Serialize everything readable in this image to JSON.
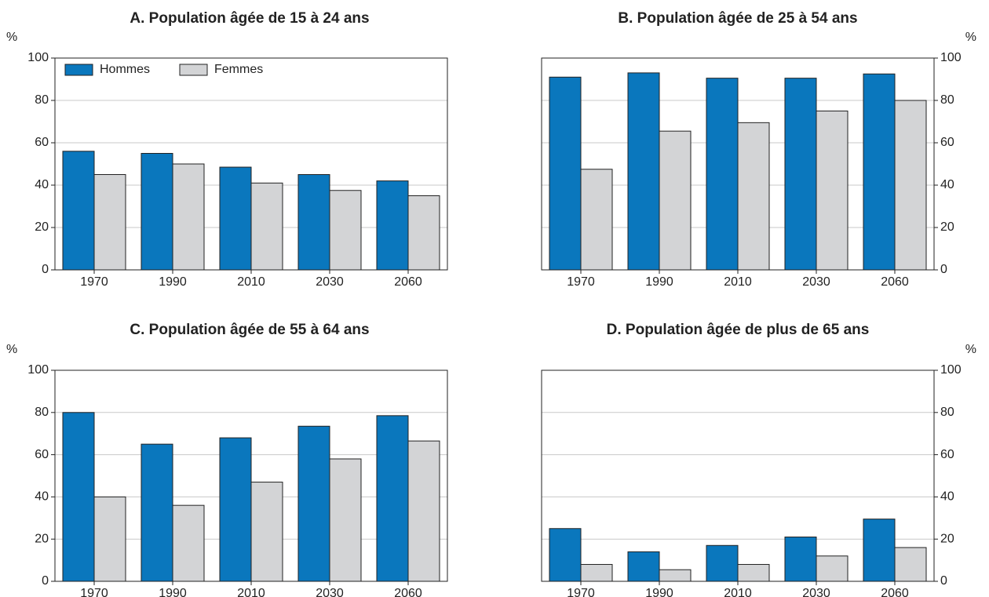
{
  "chart_data": [
    {
      "type": "bar",
      "title": "A. Population âgée de 15 à 24 ans",
      "ylabel": "%",
      "axis_side": "left",
      "ylim": [
        0,
        100
      ],
      "yticks": [
        0,
        20,
        40,
        60,
        80,
        100
      ],
      "categories": [
        "1970",
        "1990",
        "2010",
        "2030",
        "2060"
      ],
      "series": [
        {
          "name": "Hommes",
          "values": [
            56,
            55,
            48.5,
            45,
            42
          ]
        },
        {
          "name": "Femmes",
          "values": [
            45,
            50,
            41,
            37.5,
            35
          ]
        }
      ],
      "legend": "top-left",
      "grid": true
    },
    {
      "type": "bar",
      "title": "B. Population âgée de 25 à 54 ans",
      "ylabel": "%",
      "axis_side": "right",
      "ylim": [
        0,
        100
      ],
      "yticks": [
        0,
        20,
        40,
        60,
        80,
        100
      ],
      "categories": [
        "1970",
        "1990",
        "2010",
        "2030",
        "2060"
      ],
      "series": [
        {
          "name": "Hommes",
          "values": [
            91,
            93,
            90.5,
            90.5,
            92.5
          ]
        },
        {
          "name": "Femmes",
          "values": [
            47.5,
            65.5,
            69.5,
            75,
            80
          ]
        }
      ],
      "grid": true
    },
    {
      "type": "bar",
      "title": "C. Population âgée de 55 à 64 ans",
      "ylabel": "%",
      "axis_side": "left",
      "ylim": [
        0,
        100
      ],
      "yticks": [
        0,
        20,
        40,
        60,
        80,
        100
      ],
      "categories": [
        "1970",
        "1990",
        "2010",
        "2030",
        "2060"
      ],
      "series": [
        {
          "name": "Hommes",
          "values": [
            80,
            65,
            68,
            73.5,
            78.5
          ]
        },
        {
          "name": "Femmes",
          "values": [
            40,
            36,
            47,
            58,
            66.5
          ]
        }
      ],
      "grid": true
    },
    {
      "type": "bar",
      "title": "D. Population âgée de plus de 65 ans",
      "ylabel": "%",
      "axis_side": "right",
      "ylim": [
        0,
        100
      ],
      "yticks": [
        0,
        20,
        40,
        60,
        80,
        100
      ],
      "categories": [
        "1970",
        "1990",
        "2010",
        "2030",
        "2060"
      ],
      "series": [
        {
          "name": "Hommes",
          "values": [
            25,
            14,
            17,
            21,
            29.5
          ]
        },
        {
          "name": "Femmes",
          "values": [
            8,
            5.5,
            8,
            12,
            16
          ]
        }
      ],
      "grid": true
    }
  ],
  "colors": {
    "hommes": "#0a77bd",
    "femmes": "#d3d4d6",
    "gridline": "#c8c8c8",
    "frame": "#222222"
  }
}
